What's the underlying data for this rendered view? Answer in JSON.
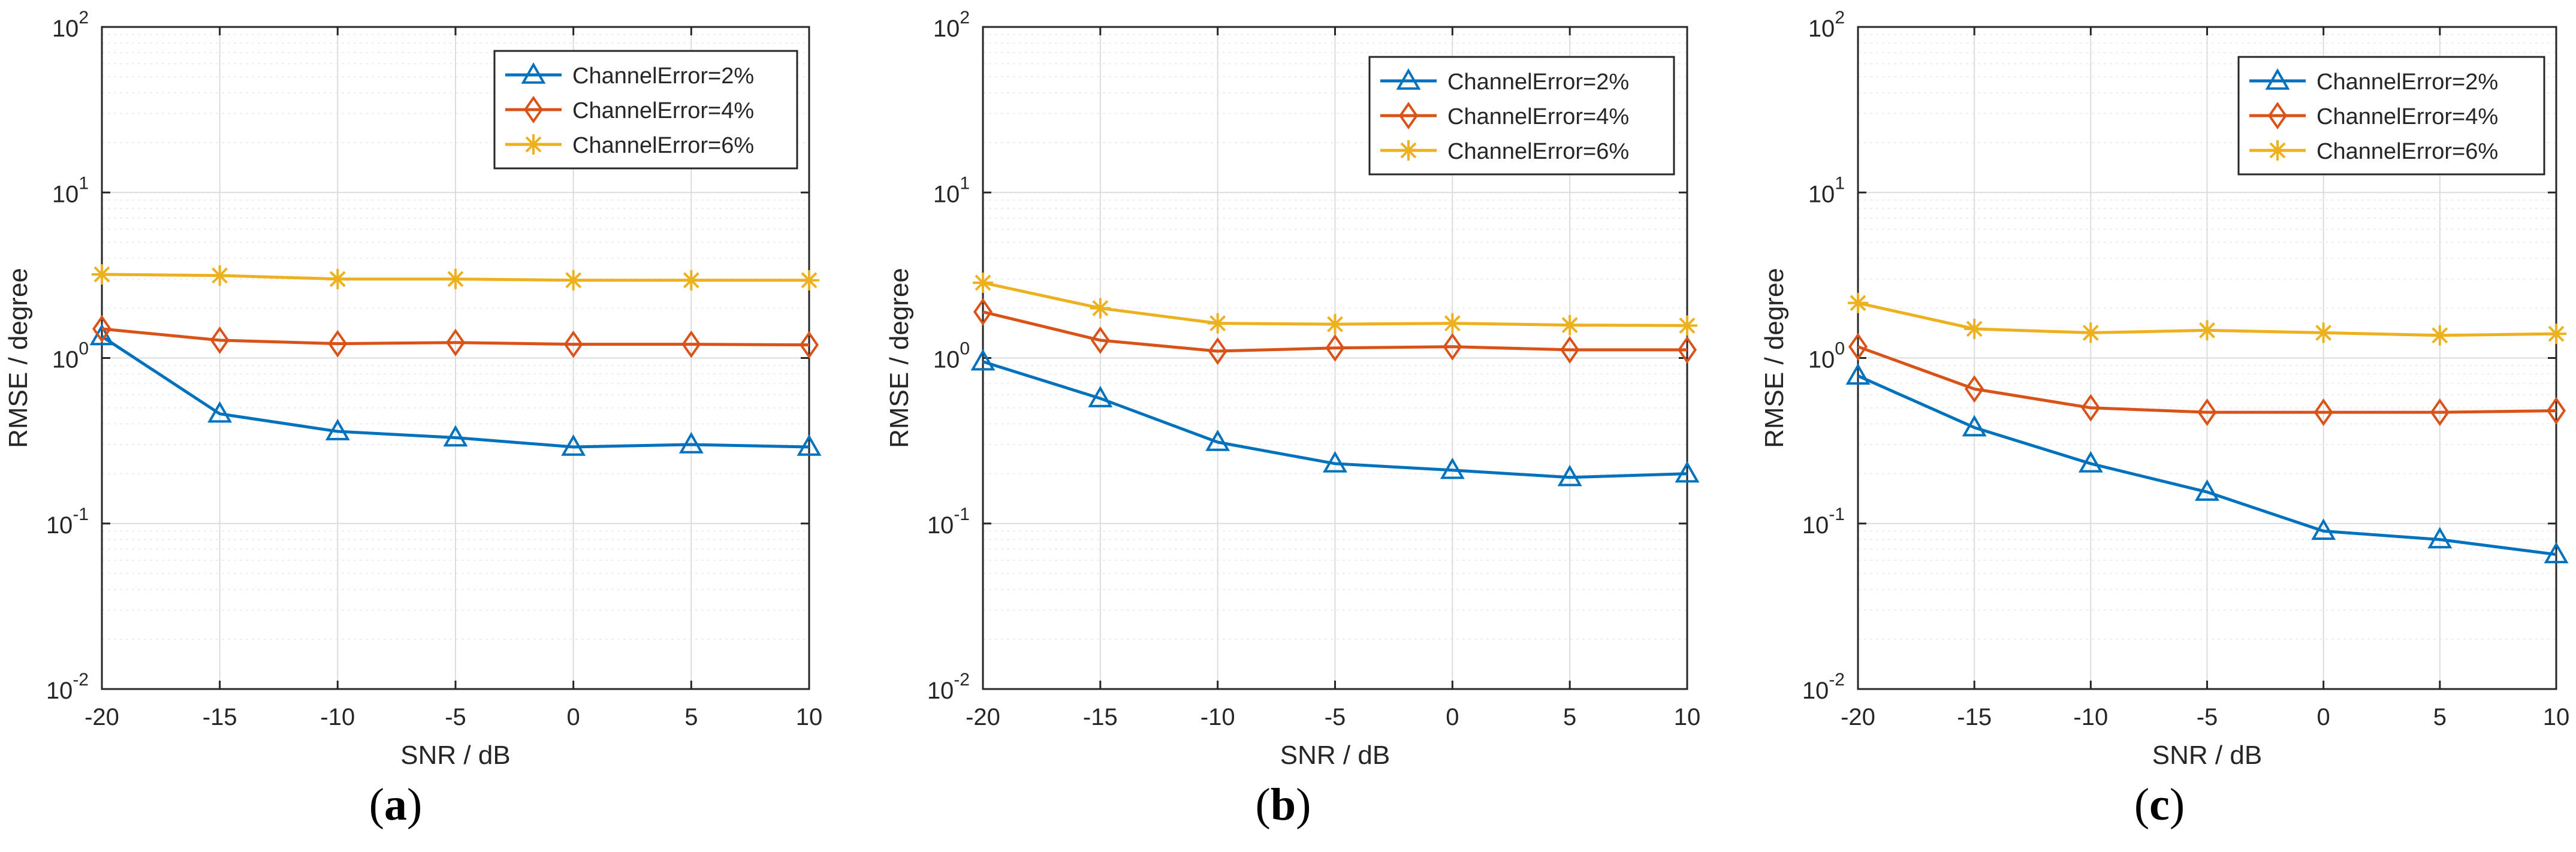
{
  "colors": {
    "series": [
      "#0072BD",
      "#D95319",
      "#EDB120"
    ],
    "axis": "#262626",
    "grid_major": "#dcdcdc",
    "grid_minor": "#eeeeee",
    "text": "#262626"
  },
  "chart_data": [
    {
      "panel_label": "a",
      "type": "line",
      "xlabel": "SNR / dB",
      "ylabel": "RMSE / degree",
      "yscale": "log",
      "xlim": [
        -20,
        10
      ],
      "ylim": [
        0.01,
        100
      ],
      "x": [
        -20,
        -15,
        -10,
        -5,
        0,
        5,
        10
      ],
      "xticks": [
        "-20",
        "-15",
        "-10",
        "-5",
        "0",
        "5",
        "10"
      ],
      "yticks": [
        {
          "base": "10",
          "exp": "-2"
        },
        {
          "base": "10",
          "exp": "-1"
        },
        {
          "base": "10",
          "exp": "0"
        },
        {
          "base": "10",
          "exp": "1"
        },
        {
          "base": "10",
          "exp": "2"
        }
      ],
      "legend_position": "top-right",
      "grid": true,
      "series": [
        {
          "name": "ChannelError=2%",
          "marker": "triangle",
          "values": [
            1.35,
            0.46,
            0.36,
            0.33,
            0.29,
            0.3,
            0.29
          ]
        },
        {
          "name": "ChannelError=4%",
          "marker": "diamond",
          "values": [
            1.5,
            1.28,
            1.22,
            1.24,
            1.21,
            1.21,
            1.2
          ]
        },
        {
          "name": "ChannelError=6%",
          "marker": "star",
          "values": [
            3.2,
            3.15,
            3.0,
            3.0,
            2.95,
            2.95,
            2.95
          ]
        }
      ]
    },
    {
      "panel_label": "b",
      "type": "line",
      "xlabel": "SNR / dB",
      "ylabel": "RMSE / degree",
      "yscale": "log",
      "xlim": [
        -20,
        10
      ],
      "ylim": [
        0.01,
        100
      ],
      "x": [
        -20,
        -15,
        -10,
        -5,
        0,
        5,
        10
      ],
      "xticks": [
        "-20",
        "-15",
        "-10",
        "-5",
        "0",
        "5",
        "10"
      ],
      "yticks": [
        {
          "base": "10",
          "exp": "-2"
        },
        {
          "base": "10",
          "exp": "-1"
        },
        {
          "base": "10",
          "exp": "0"
        },
        {
          "base": "10",
          "exp": "1"
        },
        {
          "base": "10",
          "exp": "2"
        }
      ],
      "legend_position": "top-right",
      "grid": true,
      "series": [
        {
          "name": "ChannelError=2%",
          "marker": "triangle",
          "values": [
            0.95,
            0.57,
            0.31,
            0.23,
            0.21,
            0.19,
            0.2
          ]
        },
        {
          "name": "ChannelError=4%",
          "marker": "diamond",
          "values": [
            1.9,
            1.28,
            1.1,
            1.15,
            1.17,
            1.12,
            1.12
          ]
        },
        {
          "name": "ChannelError=6%",
          "marker": "star",
          "values": [
            2.85,
            2.0,
            1.62,
            1.6,
            1.62,
            1.58,
            1.57
          ]
        }
      ]
    },
    {
      "panel_label": "c",
      "type": "line",
      "xlabel": "SNR / dB",
      "ylabel": "RMSE / degree",
      "yscale": "log",
      "xlim": [
        -20,
        10
      ],
      "ylim": [
        0.01,
        100
      ],
      "x": [
        -20,
        -15,
        -10,
        -5,
        0,
        5,
        10
      ],
      "xticks": [
        "-20",
        "-15",
        "-10",
        "-5",
        "0",
        "5",
        "10"
      ],
      "yticks": [
        {
          "base": "10",
          "exp": "-2"
        },
        {
          "base": "10",
          "exp": "-1"
        },
        {
          "base": "10",
          "exp": "0"
        },
        {
          "base": "10",
          "exp": "1"
        },
        {
          "base": "10",
          "exp": "2"
        }
      ],
      "legend_position": "top-right",
      "grid": true,
      "series": [
        {
          "name": "ChannelError=2%",
          "marker": "triangle",
          "values": [
            0.78,
            0.38,
            0.23,
            0.155,
            0.09,
            0.08,
            0.065
          ]
        },
        {
          "name": "ChannelError=4%",
          "marker": "diamond",
          "values": [
            1.17,
            0.65,
            0.5,
            0.47,
            0.47,
            0.47,
            0.48
          ]
        },
        {
          "name": "ChannelError=6%",
          "marker": "star",
          "values": [
            2.15,
            1.5,
            1.42,
            1.47,
            1.42,
            1.37,
            1.4
          ]
        }
      ]
    }
  ]
}
